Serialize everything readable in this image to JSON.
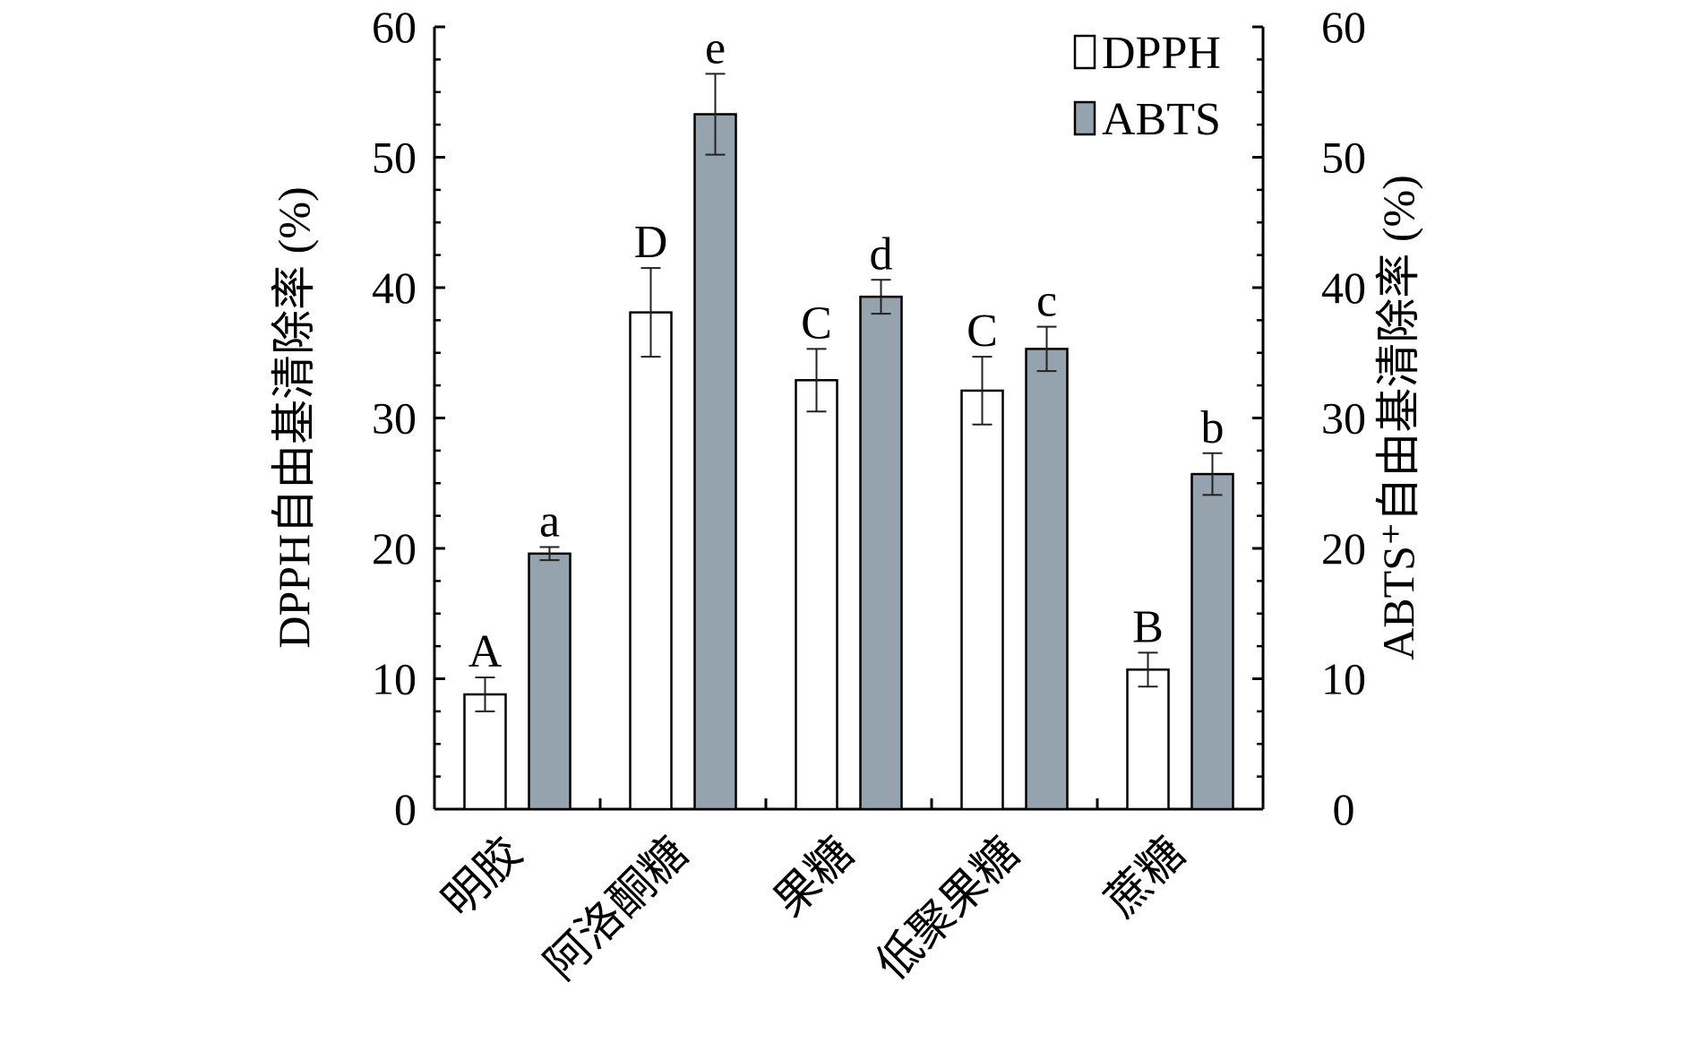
{
  "chart_data": {
    "type": "bar",
    "categories": [
      "明胶",
      "阿洛酮糖",
      "果糖",
      "低聚果糖",
      "蔗糖"
    ],
    "series": [
      {
        "name": "DPPH",
        "values": [
          8.8,
          38.1,
          32.9,
          32.1,
          10.7
        ],
        "errors": [
          1.3,
          3.4,
          2.4,
          2.6,
          1.3
        ],
        "letters": [
          "A",
          "D",
          "C",
          "C",
          "B"
        ],
        "color": "#ffffff"
      },
      {
        "name": "ABTS",
        "values": [
          19.6,
          53.3,
          39.3,
          35.3,
          25.7
        ],
        "errors": [
          0.5,
          3.1,
          1.3,
          1.7,
          1.6
        ],
        "letters": [
          "a",
          "e",
          "d",
          "c",
          "b"
        ],
        "color": "#94a3ae"
      }
    ],
    "ylabel": "DPPH自由基清除率 (%)",
    "ylabel_right": "ABTS⁺自由基清除率 (%)",
    "ylim": [
      0,
      60
    ],
    "yticks": [
      0,
      10,
      20,
      30,
      40,
      50,
      60
    ],
    "y_tick_labels": [
      "0",
      "10",
      "20",
      "30",
      "40",
      "50",
      "60"
    ],
    "legend_position": "top-right",
    "grid": false
  }
}
